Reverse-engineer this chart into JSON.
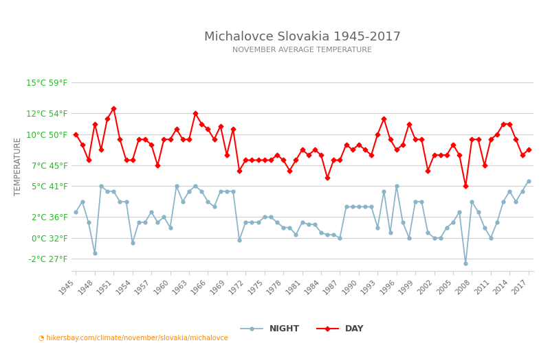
{
  "title": "Michalovce Slovakia 1945-2017",
  "subtitle": "NOVEMBER AVERAGE TEMPERATURE",
  "ylabel": "TEMPERATURE",
  "xlabel_url": "hikersbay.com/climate/november/slovakia/michalovce",
  "legend_night": "NIGHT",
  "legend_day": "DAY",
  "night_color": "#8ab4c8",
  "day_color": "#ff0000",
  "title_color": "#636363",
  "subtitle_color": "#888888",
  "ylabel_color": "#777777",
  "grid_color": "#d0d0d0",
  "bg_color": "#ffffff",
  "celsius_labels": [
    "15°C",
    "12°C",
    "10°C",
    "7°C",
    "5°C",
    "2°C",
    "0°C",
    "-2°C"
  ],
  "fahrenheit_labels": [
    "59°F",
    "54°F",
    "50°F",
    "45°F",
    "41°F",
    "36°F",
    "32°F",
    "27°F"
  ],
  "ytick_values": [
    15,
    12,
    10,
    7,
    5,
    2,
    0,
    -2
  ],
  "ylim": [
    -3.2,
    17.0
  ],
  "xlim": [
    1944.3,
    2017.8
  ],
  "years": [
    1945,
    1946,
    1947,
    1948,
    1949,
    1950,
    1951,
    1952,
    1953,
    1954,
    1955,
    1956,
    1957,
    1958,
    1959,
    1960,
    1961,
    1962,
    1963,
    1964,
    1965,
    1966,
    1967,
    1968,
    1969,
    1970,
    1971,
    1972,
    1973,
    1974,
    1975,
    1976,
    1977,
    1978,
    1979,
    1980,
    1981,
    1982,
    1983,
    1984,
    1985,
    1986,
    1987,
    1988,
    1989,
    1990,
    1991,
    1992,
    1993,
    1994,
    1995,
    1996,
    1997,
    1998,
    1999,
    2000,
    2001,
    2002,
    2003,
    2004,
    2005,
    2006,
    2007,
    2008,
    2009,
    2010,
    2011,
    2012,
    2013,
    2014,
    2015,
    2016,
    2017
  ],
  "day_temps": [
    10.0,
    9.0,
    7.5,
    11.0,
    8.5,
    11.5,
    12.5,
    9.5,
    7.5,
    7.5,
    9.5,
    9.5,
    9.0,
    7.0,
    9.5,
    9.5,
    10.5,
    9.5,
    9.5,
    12.0,
    11.0,
    10.5,
    9.5,
    10.8,
    8.0,
    10.5,
    6.5,
    7.5,
    7.5,
    7.5,
    7.5,
    7.5,
    8.0,
    7.5,
    6.5,
    7.5,
    8.5,
    8.0,
    8.5,
    8.0,
    5.8,
    7.5,
    7.5,
    9.0,
    8.5,
    9.0,
    8.5,
    8.0,
    10.0,
    11.5,
    9.5,
    8.5,
    9.0,
    11.0,
    9.5,
    9.5,
    6.5,
    8.0,
    8.0,
    8.0,
    9.0,
    8.0,
    5.0,
    9.5,
    9.5,
    7.0,
    9.5,
    10.0,
    11.0,
    11.0,
    9.5,
    8.0,
    8.5
  ],
  "night_temps": [
    2.5,
    3.5,
    1.5,
    -1.5,
    5.0,
    4.5,
    4.5,
    3.5,
    3.5,
    -0.5,
    1.5,
    1.5,
    2.5,
    1.5,
    2.0,
    1.0,
    5.0,
    3.5,
    4.5,
    5.0,
    4.5,
    3.5,
    3.0,
    4.5,
    4.5,
    4.5,
    -0.2,
    1.5,
    1.5,
    1.5,
    2.0,
    2.0,
    1.5,
    1.0,
    1.0,
    0.3,
    1.5,
    1.3,
    1.3,
    0.5,
    0.3,
    0.3,
    0.0,
    3.0,
    3.0,
    3.0,
    3.0,
    3.0,
    1.0,
    4.5,
    0.5,
    5.0,
    1.5,
    0.0,
    3.5,
    3.5,
    0.5,
    0.0,
    0.0,
    1.0,
    1.5,
    2.5,
    -2.5,
    3.5,
    2.5,
    1.0,
    0.0,
    1.5,
    3.5,
    4.5,
    3.5,
    4.5,
    5.5
  ]
}
